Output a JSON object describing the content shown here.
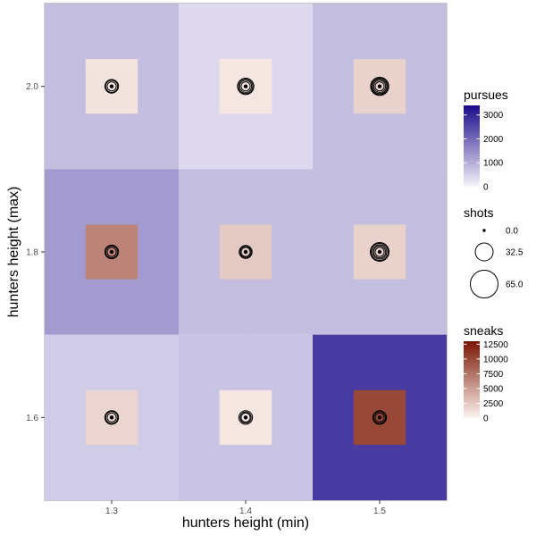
{
  "chart_data": {
    "type": "heatmap",
    "xlabel": "hunters height (min)",
    "ylabel": "hunters height (max)",
    "x_ticks": [
      "1.3",
      "1.4",
      "1.5"
    ],
    "y_ticks": [
      "1.6",
      "1.8",
      "2.0"
    ],
    "x_values": [
      1.3,
      1.4,
      1.5
    ],
    "y_values": [
      1.6,
      1.8,
      2.0
    ],
    "xlim": [
      1.25,
      1.55
    ],
    "ylim": [
      1.5,
      2.1
    ],
    "grid": true,
    "legend_placement": "right",
    "cells": [
      {
        "x": 1.3,
        "y": 2.0,
        "pursues": 800,
        "sneaks": 1000,
        "shots": [
          8,
          14,
          18
        ]
      },
      {
        "x": 1.4,
        "y": 2.0,
        "pursues": 400,
        "sneaks": 800,
        "shots": [
          8,
          14,
          20,
          26
        ]
      },
      {
        "x": 1.5,
        "y": 2.0,
        "pursues": 800,
        "sneaks": 2000,
        "shots": [
          8,
          14,
          20,
          26,
          32
        ]
      },
      {
        "x": 1.3,
        "y": 1.8,
        "pursues": 1300,
        "sneaks": 6500,
        "shots": [
          8,
          14,
          18
        ]
      },
      {
        "x": 1.4,
        "y": 1.8,
        "pursues": 800,
        "sneaks": 2500,
        "shots": [
          8,
          12,
          16
        ]
      },
      {
        "x": 1.5,
        "y": 1.8,
        "pursues": 800,
        "sneaks": 2000,
        "shots": [
          8,
          14,
          20,
          28,
          34
        ]
      },
      {
        "x": 1.3,
        "y": 1.6,
        "pursues": 600,
        "sneaks": 1800,
        "shots": [
          8,
          14,
          18
        ]
      },
      {
        "x": 1.4,
        "y": 1.6,
        "pursues": 700,
        "sneaks": 800,
        "shots": [
          8,
          12,
          18
        ]
      },
      {
        "x": 1.5,
        "y": 1.6,
        "pursues": 2700,
        "sneaks": 10000,
        "shots": [
          8,
          14,
          18
        ]
      }
    ],
    "legends": {
      "pursues": {
        "title": "pursues",
        "range": [
          0,
          3400
        ],
        "ticks": [
          0,
          1000,
          2000,
          3000
        ],
        "tick_labels": [
          "0",
          "1000",
          "2000",
          "3000"
        ],
        "low_color": "#f7f4fb",
        "high_color": "#1a0a8a"
      },
      "shots": {
        "title": "shots",
        "values": [
          0,
          32.5,
          65
        ],
        "labels": [
          "0.0",
          "32.5",
          "65.0"
        ]
      },
      "sneaks": {
        "title": "sneaks",
        "range": [
          0,
          13000
        ],
        "ticks": [
          0,
          2500,
          5000,
          7500,
          10000,
          12500
        ],
        "tick_labels": [
          "0",
          "2500",
          "5000",
          "7500",
          "10000",
          "12500"
        ],
        "low_color": "#fdf4f1",
        "high_color": "#7a1400"
      }
    }
  }
}
